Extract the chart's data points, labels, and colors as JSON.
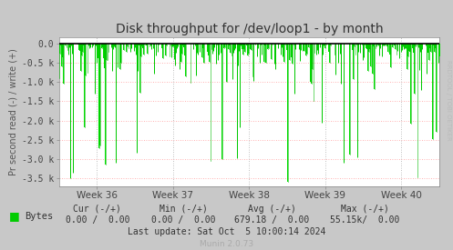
{
  "title": "Disk throughput for /dev/loop1 - by month",
  "ylabel": "Pr second read (-) / write (+)",
  "background_color": "#c8c8c8",
  "plot_bg_color": "#ffffff",
  "grid_color_dotted": "#aaaaaa",
  "grid_color_red": "#ff9999",
  "line_color": "#00bb00",
  "fill_color": "#00dd00",
  "ylim": [
    -3700,
    150
  ],
  "yticks": [
    0.0,
    -500,
    -1000,
    -1500,
    -2000,
    -2500,
    -3000,
    -3500
  ],
  "ytick_labels": [
    "0.0",
    "-0.5 k",
    "-1.0 k",
    "-1.5 k",
    "-2.0 k",
    "-2.5 k",
    "-3.0 k",
    "-3.5 k"
  ],
  "xtick_labels": [
    "Week 36",
    "Week 37",
    "Week 38",
    "Week 39",
    "Week 40"
  ],
  "xtick_positions": [
    0.1,
    0.3,
    0.5,
    0.7,
    0.9
  ],
  "legend_label": "Bytes",
  "legend_color": "#00cc00",
  "footer_text": "Last update: Sat Oct  5 10:00:14 2024",
  "footer_text2": "Munin 2.0.73",
  "cur_label": "Cur (-/+)",
  "min_label": "Min (-/+)",
  "avg_label": "Avg (-/+)",
  "max_label": "Max (-/+)",
  "cur_val": "0.00 /  0.00",
  "min_val": "0.00 /  0.00",
  "avg_val": "679.18 /  0.00",
  "max_val": "55.15k/  0.00",
  "watermark": "RRDTOOL / TOBI OETIKER",
  "n_bars": 400,
  "seed": 42,
  "red_gridlines": [
    -500,
    -1000,
    -1500,
    -2000,
    -2500,
    -3000,
    -3500
  ],
  "vertical_gridlines": [
    0.1,
    0.3,
    0.5,
    0.7,
    0.9
  ]
}
